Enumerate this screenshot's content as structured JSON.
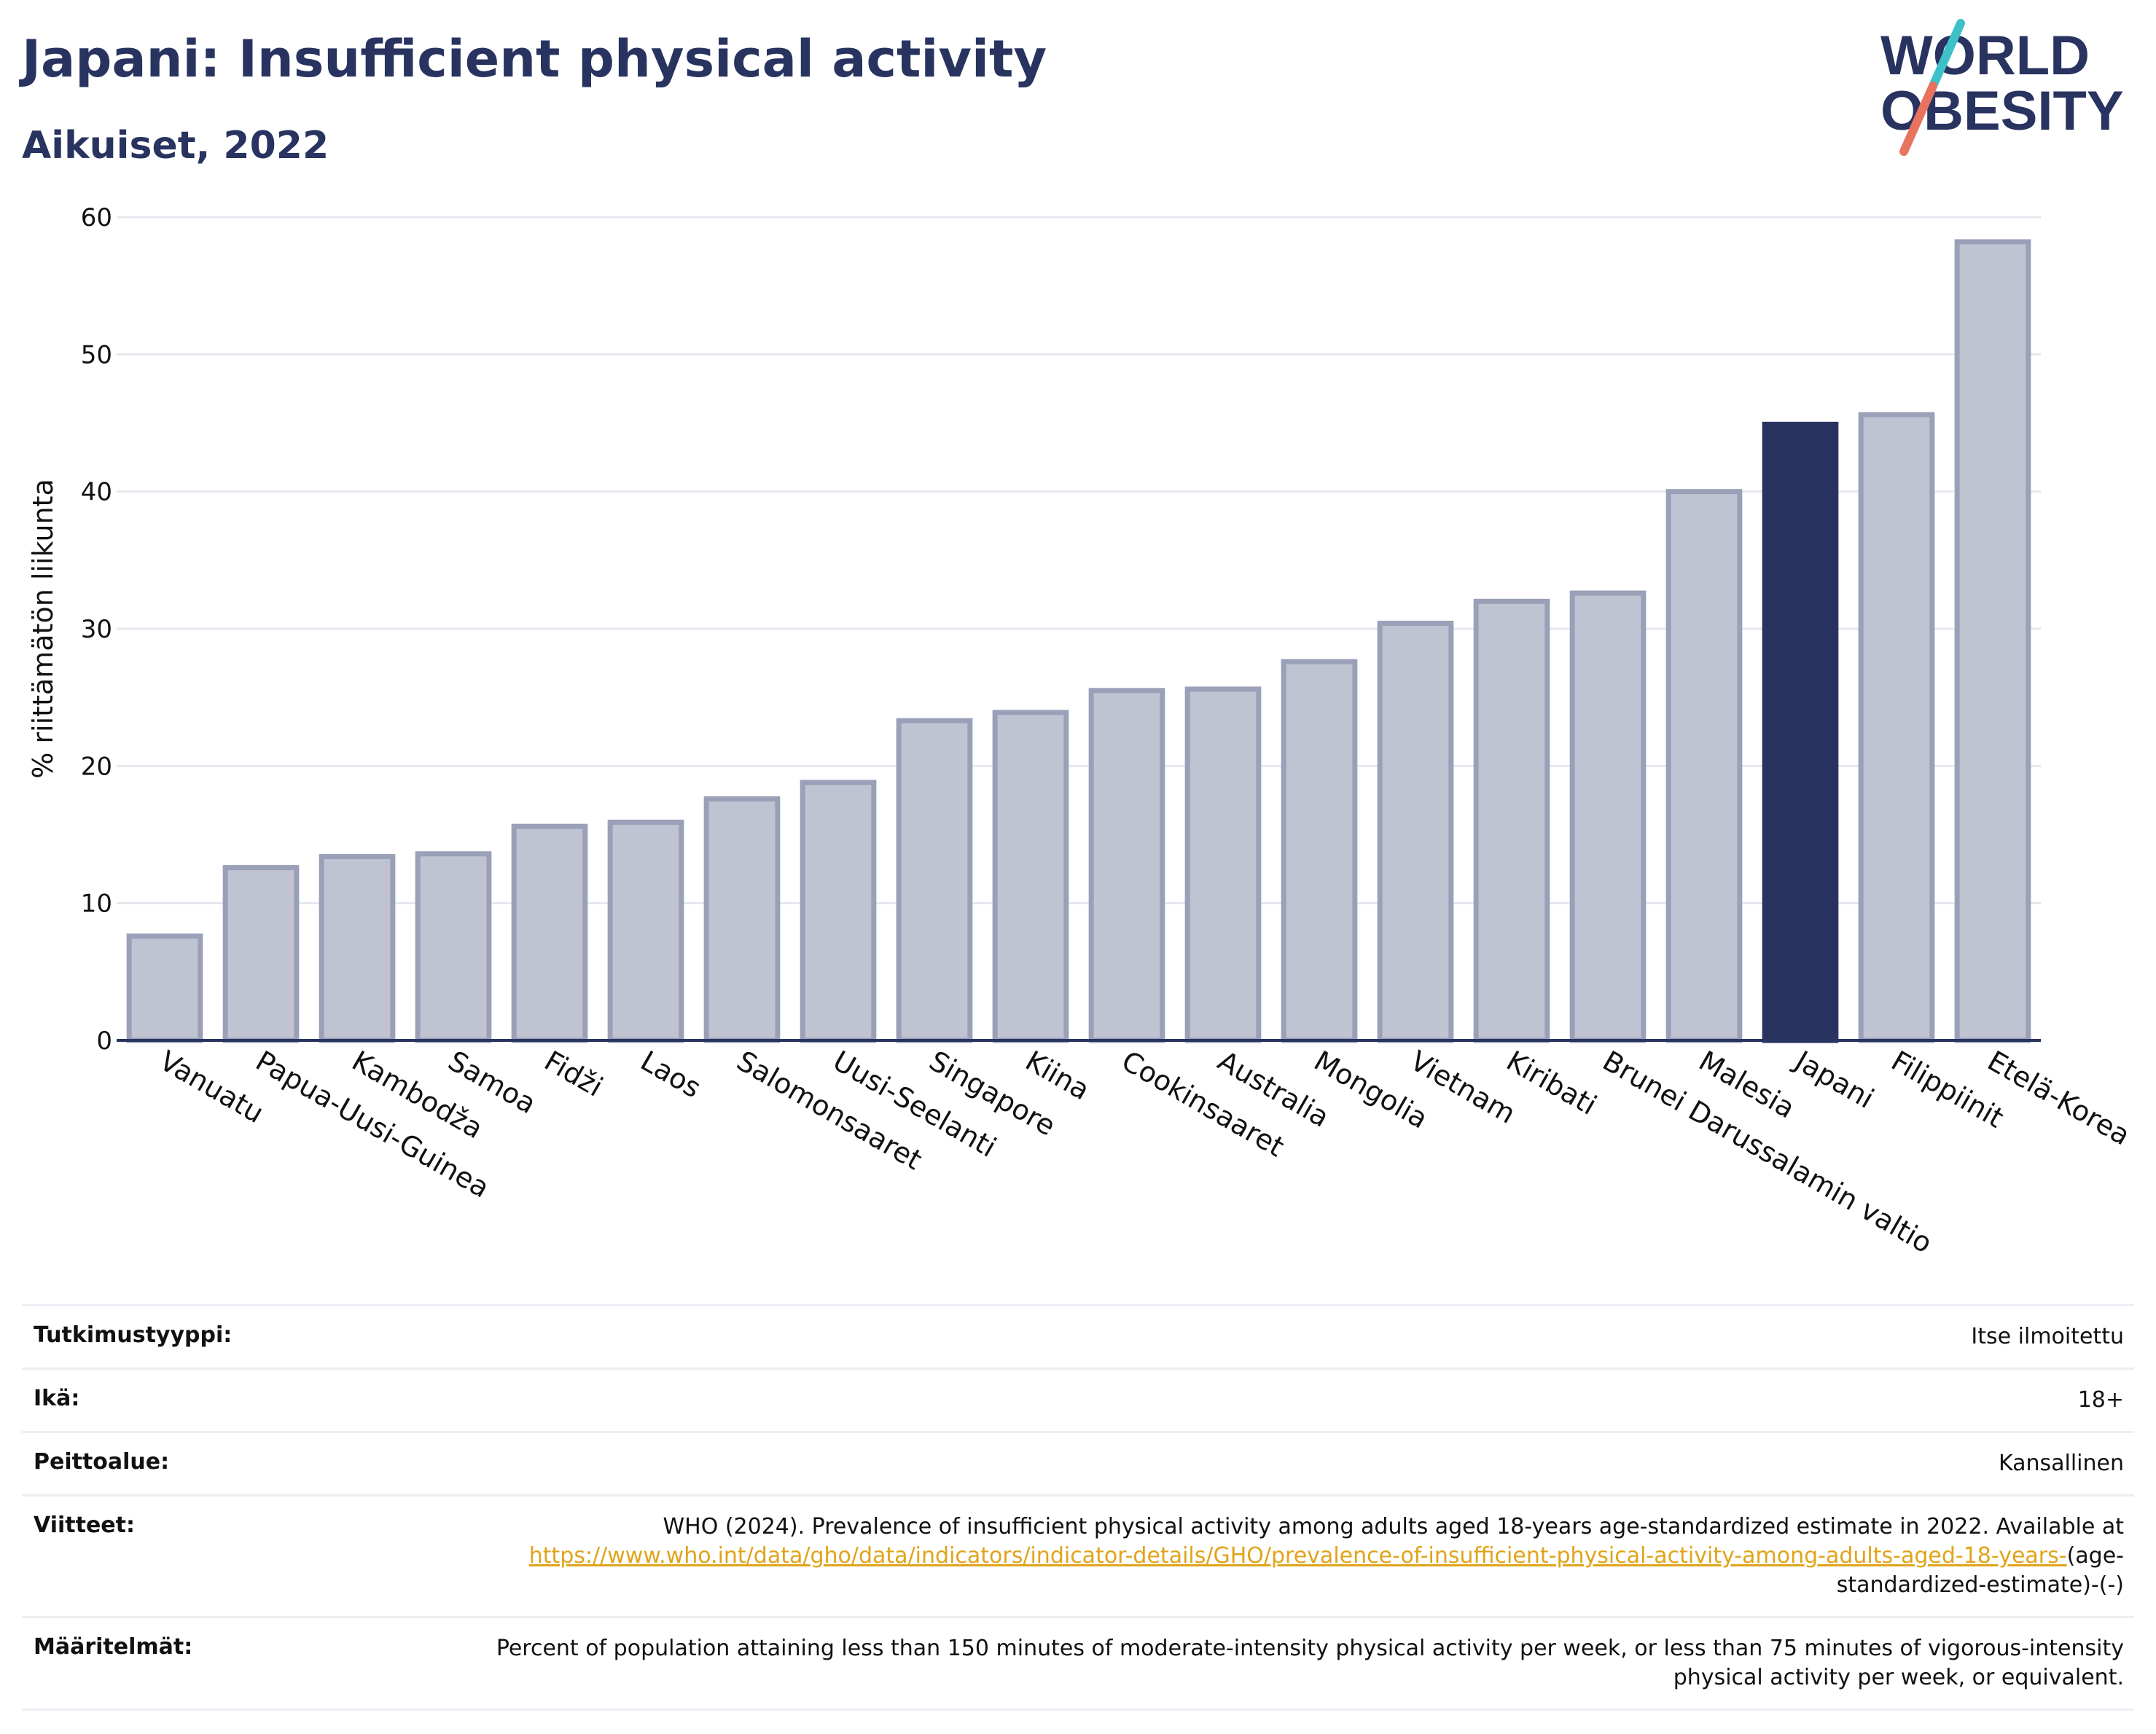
{
  "header": {
    "title": "Japani: Insufficient physical activity",
    "subtitle": "Aikuiset, 2022"
  },
  "logo": {
    "line1": "WORLD",
    "line2": "OBESITY"
  },
  "chart_data": {
    "type": "bar",
    "ylabel": "% riittämätön liikunta",
    "ylim": [
      0,
      60
    ],
    "yticks": [
      0,
      10,
      20,
      30,
      40,
      50,
      60
    ],
    "categories": [
      "Vanuatu",
      "Papua-Uusi-Guinea",
      "Kambodža",
      "Samoa",
      "Fidži",
      "Laos",
      "Salomonsaaret",
      "Uusi-Seelanti",
      "Singapore",
      "Kiina",
      "Cookinsaaret",
      "Australia",
      "Mongolia",
      "Vietnam",
      "Kiribati",
      "Brunei Darussalamin valtio",
      "Malesia",
      "Japani",
      "Filippiinit",
      "Etelä-Korea"
    ],
    "values": [
      7.6,
      12.6,
      13.4,
      13.6,
      15.6,
      15.9,
      17.6,
      18.8,
      23.3,
      23.9,
      25.5,
      25.6,
      27.6,
      30.4,
      32.0,
      32.6,
      40.0,
      44.9,
      45.6,
      58.2
    ],
    "highlight": "Japani",
    "colors": {
      "bar": "#c0c3d1",
      "bar_edge": "#9aa0b8",
      "highlight": "#283360",
      "grid": "#e6e8ef",
      "axis": "#283360"
    },
    "grid": true
  },
  "meta": {
    "rows": [
      {
        "label": "Tutkimustyyppi:",
        "value": "Itse ilmoitettu"
      },
      {
        "label": "Ikä:",
        "value": "18+"
      },
      {
        "label": "Peittoalue:",
        "value": "Kansallinen"
      },
      {
        "label": "Viitteet:",
        "value": "WHO (2024). Prevalence of insufficient physical activity among adults aged 18-years age-standardized estimate in 2022. Available at",
        "link": "https://www.who.int/data/gho/data/indicators/indicator-details/GHO/prevalence-of-insufficient-physical-activity-among-adults-aged-18-years-",
        "suffix": "(age-standardized-estimate)-(-)"
      },
      {
        "label": "Määritelmät:",
        "value": "Percent of population attaining less than 150 minutes of moderate-intensity physical activity per week, or less than 75 minutes of vigorous-intensity physical activity per week, or equivalent."
      }
    ]
  }
}
